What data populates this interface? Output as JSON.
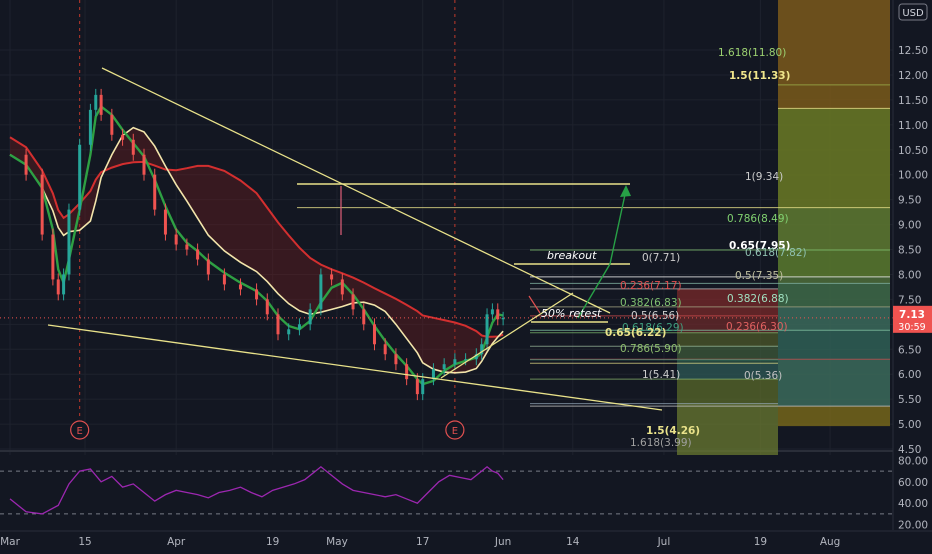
{
  "currency": "USD",
  "price_label": {
    "value": "7.13",
    "countdown": "30:59"
  },
  "chart_data": {
    "type": "line",
    "y_axis": {
      "min": 4.5,
      "max": 12.5,
      "ticks": [
        "12.50",
        "12.00",
        "11.50",
        "11.00",
        "10.50",
        "10.00",
        "9.50",
        "9.00",
        "8.50",
        "8.00",
        "7.50",
        "7.00",
        "6.50",
        "6.00",
        "5.50",
        "5.00",
        "4.50"
      ]
    },
    "x_ticks": [
      {
        "label": "Mar",
        "t": 0
      },
      {
        "label": "15",
        "t": 14
      },
      {
        "label": "Apr",
        "t": 31
      },
      {
        "label": "19",
        "t": 49
      },
      {
        "label": "May",
        "t": 61
      },
      {
        "label": "17",
        "t": 77
      },
      {
        "label": "Jun",
        "t": 92
      },
      {
        "label": "14",
        "t": 105
      },
      {
        "label": "Jul",
        "t": 122
      },
      {
        "label": "19",
        "t": 140
      },
      {
        "label": "Aug",
        "t": 153
      }
    ],
    "earnings_markers": [
      {
        "label": "E",
        "t": 13
      },
      {
        "label": "E",
        "t": 83
      }
    ],
    "price": [
      [
        0,
        10.4
      ],
      [
        3,
        10.0
      ],
      [
        6,
        8.8
      ],
      [
        8,
        7.9
      ],
      [
        9,
        7.6
      ],
      [
        10,
        8.0
      ],
      [
        11,
        9.3
      ],
      [
        13,
        10.6
      ],
      [
        15,
        11.3
      ],
      [
        16,
        11.6
      ],
      [
        17,
        11.2
      ],
      [
        19,
        10.8
      ],
      [
        21,
        10.7
      ],
      [
        23,
        10.4
      ],
      [
        25,
        10.0
      ],
      [
        27,
        9.3
      ],
      [
        29,
        8.8
      ],
      [
        31,
        8.6
      ],
      [
        33,
        8.5
      ],
      [
        35,
        8.3
      ],
      [
        37,
        8.0
      ],
      [
        40,
        7.8
      ],
      [
        43,
        7.7
      ],
      [
        46,
        7.5
      ],
      [
        48,
        7.2
      ],
      [
        50,
        6.8
      ],
      [
        52,
        6.9
      ],
      [
        54,
        7.0
      ],
      [
        56,
        7.3
      ],
      [
        58,
        8.0
      ],
      [
        60,
        7.9
      ],
      [
        62,
        7.6
      ],
      [
        64,
        7.3
      ],
      [
        66,
        7.0
      ],
      [
        68,
        6.6
      ],
      [
        70,
        6.4
      ],
      [
        72,
        6.2
      ],
      [
        74,
        5.9
      ],
      [
        76,
        5.6
      ],
      [
        77,
        5.9
      ],
      [
        79,
        6.1
      ],
      [
        81,
        6.2
      ],
      [
        83,
        6.3
      ],
      [
        85,
        6.3
      ],
      [
        87,
        6.4
      ],
      [
        88,
        6.6
      ],
      [
        89,
        7.2
      ],
      [
        90,
        7.3
      ],
      [
        91,
        7.1
      ],
      [
        92,
        7.13
      ]
    ],
    "rsi": [
      [
        0,
        44
      ],
      [
        3,
        32
      ],
      [
        6,
        30
      ],
      [
        9,
        38
      ],
      [
        11,
        58
      ],
      [
        13,
        70
      ],
      [
        15,
        72
      ],
      [
        17,
        60
      ],
      [
        19,
        65
      ],
      [
        21,
        55
      ],
      [
        23,
        58
      ],
      [
        25,
        50
      ],
      [
        27,
        42
      ],
      [
        29,
        48
      ],
      [
        31,
        52
      ],
      [
        33,
        50
      ],
      [
        35,
        48
      ],
      [
        37,
        45
      ],
      [
        39,
        50
      ],
      [
        41,
        52
      ],
      [
        43,
        55
      ],
      [
        45,
        50
      ],
      [
        47,
        46
      ],
      [
        49,
        52
      ],
      [
        51,
        55
      ],
      [
        53,
        58
      ],
      [
        55,
        62
      ],
      [
        57,
        70
      ],
      [
        58,
        74
      ],
      [
        60,
        66
      ],
      [
        62,
        58
      ],
      [
        64,
        52
      ],
      [
        66,
        50
      ],
      [
        68,
        48
      ],
      [
        70,
        46
      ],
      [
        72,
        48
      ],
      [
        74,
        44
      ],
      [
        76,
        40
      ],
      [
        78,
        50
      ],
      [
        80,
        60
      ],
      [
        82,
        66
      ],
      [
        84,
        64
      ],
      [
        86,
        62
      ],
      [
        88,
        70
      ],
      [
        89,
        74
      ],
      [
        90,
        70
      ],
      [
        91,
        68
      ],
      [
        92,
        62
      ]
    ],
    "rsi_axis": {
      "min": 15,
      "max": 85,
      "ticks": [
        "80.00",
        "60.00",
        "40.00",
        "20.00"
      ]
    },
    "fib_left": [
      {
        "label": "0(7.71)",
        "v": 7.71
      },
      {
        "label": "0.236(7.17)",
        "v": 7.17
      },
      {
        "label": "0.382(6.83)",
        "v": 6.83
      },
      {
        "label": "0.5(6.56)",
        "v": 6.56
      },
      {
        "label": "0.618(6.29)",
        "v": 6.29
      },
      {
        "label": "0.65(6.22)",
        "v": 6.22
      },
      {
        "label": "0.786(5.90)",
        "v": 5.9
      },
      {
        "label": "1(5.41)",
        "v": 5.41
      },
      {
        "label": "1.5(4.26)",
        "v": 4.26
      },
      {
        "label": "1.618(3.99)",
        "v": 3.99
      }
    ],
    "fib_right": [
      {
        "label": "1.618(11.80)",
        "v": 11.8
      },
      {
        "label": "1.5(11.33)",
        "v": 11.33
      },
      {
        "label": "1(9.34)",
        "v": 9.34
      },
      {
        "label": "0.786(8.49)",
        "v": 8.49
      },
      {
        "label": "0.65(7.95)",
        "v": 7.95
      },
      {
        "label": "0.618(7.82)",
        "v": 7.82
      },
      {
        "label": "0.5(7.35)",
        "v": 7.35
      },
      {
        "label": "0.382(6.88)",
        "v": 6.88
      },
      {
        "label": "0.236(6.30)",
        "v": 6.3
      },
      {
        "label": "0(5.36)",
        "v": 5.36
      }
    ],
    "annotations": [
      "breakout",
      "50% retest"
    ]
  }
}
